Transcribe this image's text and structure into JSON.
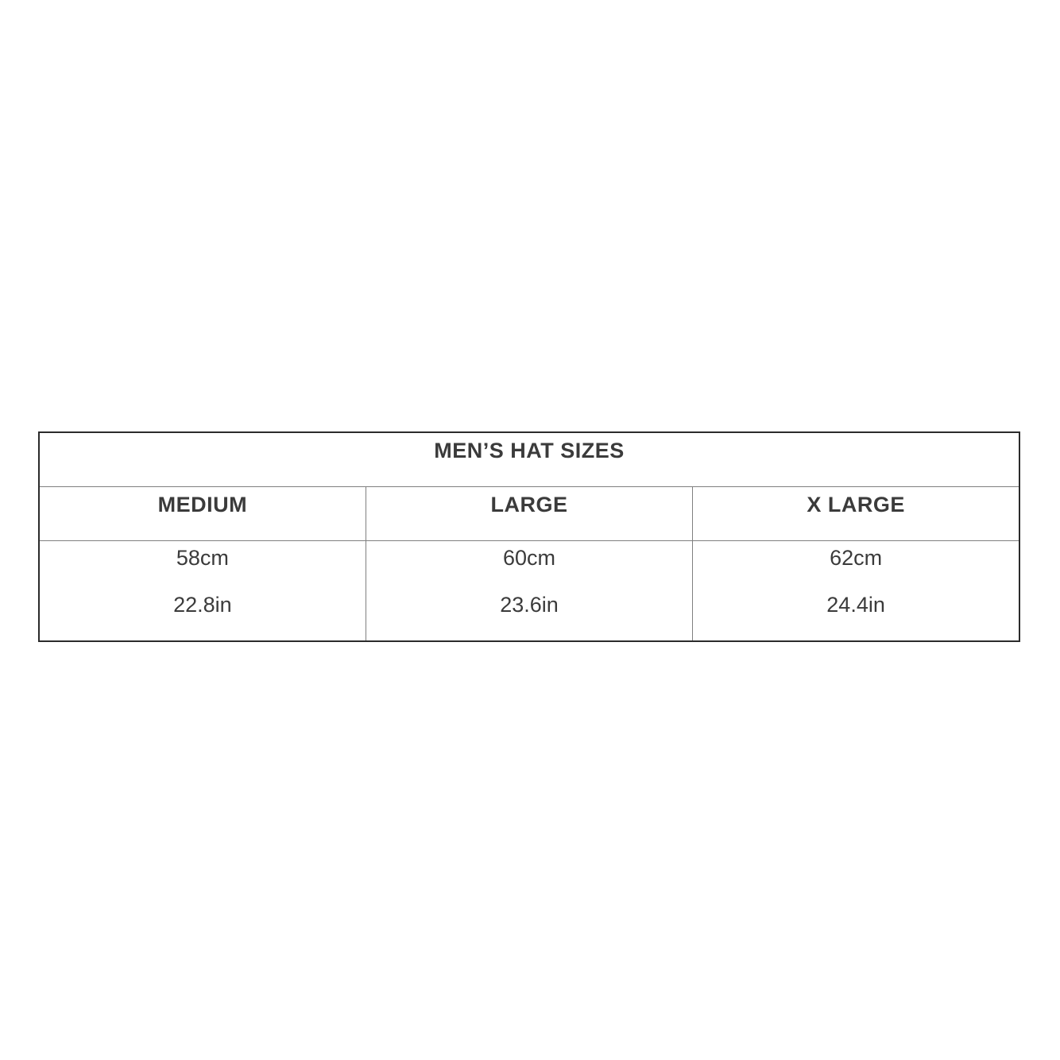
{
  "page": {
    "background": "#ffffff"
  },
  "size_chart": {
    "title": "MEN’S HAT SIZES",
    "columns": [
      {
        "label": "MEDIUM",
        "cm": "58cm",
        "inches": "22.8in"
      },
      {
        "label": "LARGE",
        "cm": "60cm",
        "inches": "23.6in"
      },
      {
        "label": "X LARGE",
        "cm": "62cm",
        "inches": "24.4in"
      }
    ],
    "colors": {
      "text": "#3b3b3b",
      "outer_border": "#2b2b2b",
      "inner_border": "#7f7f7f",
      "background": "#ffffff"
    }
  },
  "chart_data": {
    "type": "table",
    "title": "MEN’S HAT SIZES",
    "columns": [
      "MEDIUM",
      "LARGE",
      "X LARGE"
    ],
    "rows": [
      [
        "58cm",
        "60cm",
        "62cm"
      ],
      [
        "22.8in",
        "23.6in",
        "24.4in"
      ]
    ],
    "values_cm": [
      58,
      60,
      62
    ],
    "values_in": [
      22.8,
      23.6,
      24.4
    ]
  }
}
